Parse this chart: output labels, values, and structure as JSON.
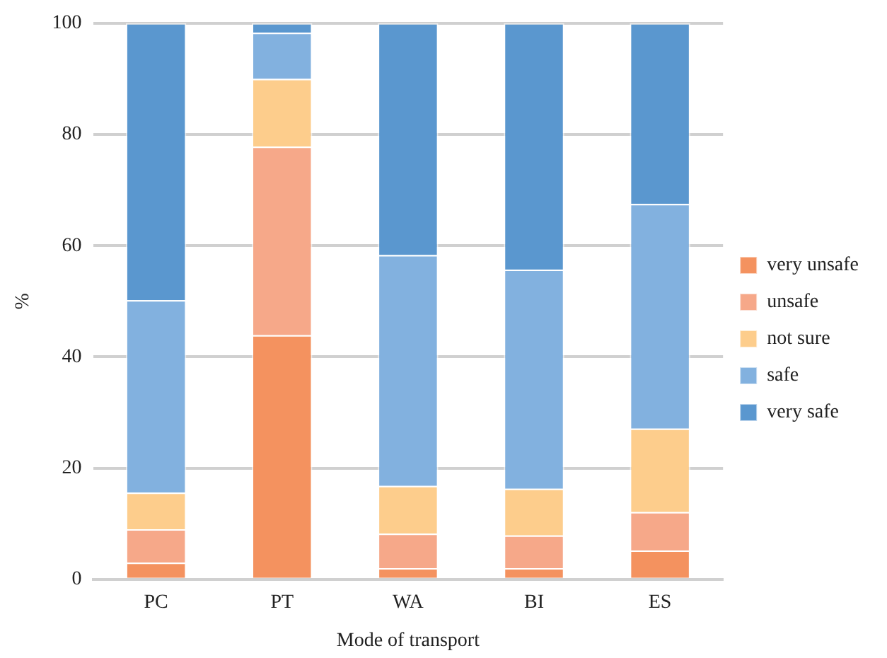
{
  "chart_data": {
    "type": "bar",
    "stacked": true,
    "xlabel": "Mode of transport",
    "ylabel": "%",
    "categories": [
      "PC",
      "PT",
      "WA",
      "BI",
      "ES"
    ],
    "series": [
      {
        "name": "very unsafe",
        "color": "#f4925f",
        "values": [
          3,
          43.9,
          2,
          2,
          5.2
        ]
      },
      {
        "name": "unsafe",
        "color": "#f6a889",
        "values": [
          6,
          33.9,
          6.2,
          5.9,
          6.9
        ]
      },
      {
        "name": "not sure",
        "color": "#fdcd8c",
        "values": [
          6.6,
          12.2,
          8.6,
          8.4,
          15
        ]
      },
      {
        "name": "safe",
        "color": "#82b1df",
        "values": [
          34.6,
          8.3,
          41.5,
          39.4,
          40.4
        ]
      },
      {
        "name": "very safe",
        "color": "#5a97cf",
        "values": [
          49.8,
          1.7,
          41.7,
          44.3,
          32.5
        ]
      }
    ],
    "ylim": [
      0,
      100
    ],
    "yticks": [
      0,
      20,
      40,
      60,
      80,
      100
    ],
    "grid": "y",
    "legend": "right"
  }
}
